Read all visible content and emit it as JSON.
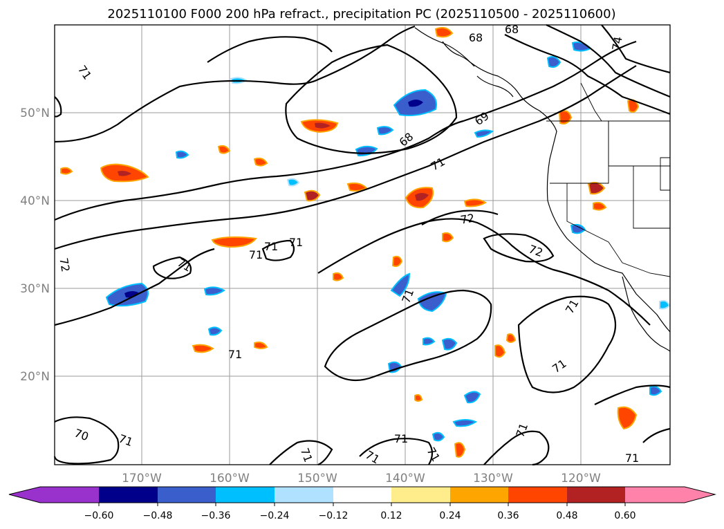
{
  "title": "2025110100 F000 200 hPa refract., precipitation PC (2025110500 - 2025110600)",
  "map": {
    "lat_labels": [
      "50°N",
      "40°N",
      "30°N",
      "20°N"
    ],
    "lon_labels": [
      "170°W",
      "160°W",
      "150°W",
      "140°W",
      "130°W",
      "120°W"
    ],
    "contour_labels": [
      "68",
      "68",
      "74",
      "71",
      "68",
      "69",
      "71",
      "72",
      "72",
      "71",
      "71",
      "71",
      "72",
      "71",
      "71",
      "71",
      "71",
      "70",
      "71",
      "71",
      "71",
      "71",
      "71",
      "71",
      "71",
      "71"
    ]
  },
  "colorbar": {
    "ticks": [
      "−0.60",
      "−0.48",
      "−0.36",
      "−0.24",
      "−0.12",
      "0.12",
      "0.24",
      "0.36",
      "0.48",
      "0.60"
    ],
    "colors": [
      "#9932cc",
      "#00008b",
      "#3a5fcd",
      "#00bfff",
      "#b0e2ff",
      "#ffffff",
      "#ffec8b",
      "#ffa500",
      "#ff4500",
      "#b22222",
      "#ff82ab"
    ]
  }
}
